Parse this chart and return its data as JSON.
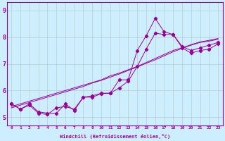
{
  "xlabel": "Windchill (Refroidissement éolien,°C)",
  "xlim": [
    -0.5,
    23.5
  ],
  "ylim": [
    4.7,
    9.3
  ],
  "yticks": [
    5,
    6,
    7,
    8,
    9
  ],
  "xticks": [
    0,
    1,
    2,
    3,
    4,
    5,
    6,
    7,
    8,
    9,
    10,
    11,
    12,
    13,
    14,
    15,
    16,
    17,
    18,
    19,
    20,
    21,
    22,
    23
  ],
  "bg_color": "#cceeff",
  "line_color": "#990099",
  "grid_color": "#bbcccc",
  "figsize": [
    3.2,
    2.0
  ],
  "dpi": 100,
  "series_jagged": [
    [
      5.5,
      5.3,
      5.45,
      5.15,
      5.1,
      5.35,
      5.4,
      5.3,
      5.75,
      5.8,
      5.9,
      5.9,
      6.4,
      6.4,
      7.5,
      8.05,
      8.7,
      8.2,
      8.1,
      7.65,
      7.5,
      7.6,
      7.7,
      7.8
    ],
    [
      5.5,
      5.3,
      5.5,
      5.2,
      5.15,
      5.15,
      5.5,
      5.25,
      5.75,
      5.75,
      5.88,
      5.9,
      6.1,
      6.35,
      6.9,
      7.55,
      8.15,
      8.1,
      8.1,
      7.6,
      7.4,
      7.5,
      7.55,
      7.75
    ]
  ],
  "series_linear": [
    [
      5.4,
      5.5,
      5.6,
      5.7,
      5.8,
      5.9,
      6.0,
      6.1,
      6.2,
      6.3,
      6.4,
      6.55,
      6.65,
      6.78,
      6.9,
      7.05,
      7.2,
      7.35,
      7.5,
      7.6,
      7.72,
      7.82,
      7.88,
      7.95
    ],
    [
      5.35,
      5.45,
      5.55,
      5.65,
      5.75,
      5.85,
      5.95,
      6.05,
      6.15,
      6.28,
      6.38,
      6.5,
      6.62,
      6.75,
      6.88,
      7.02,
      7.15,
      7.3,
      7.45,
      7.58,
      7.7,
      7.8,
      7.85,
      7.92
    ]
  ]
}
